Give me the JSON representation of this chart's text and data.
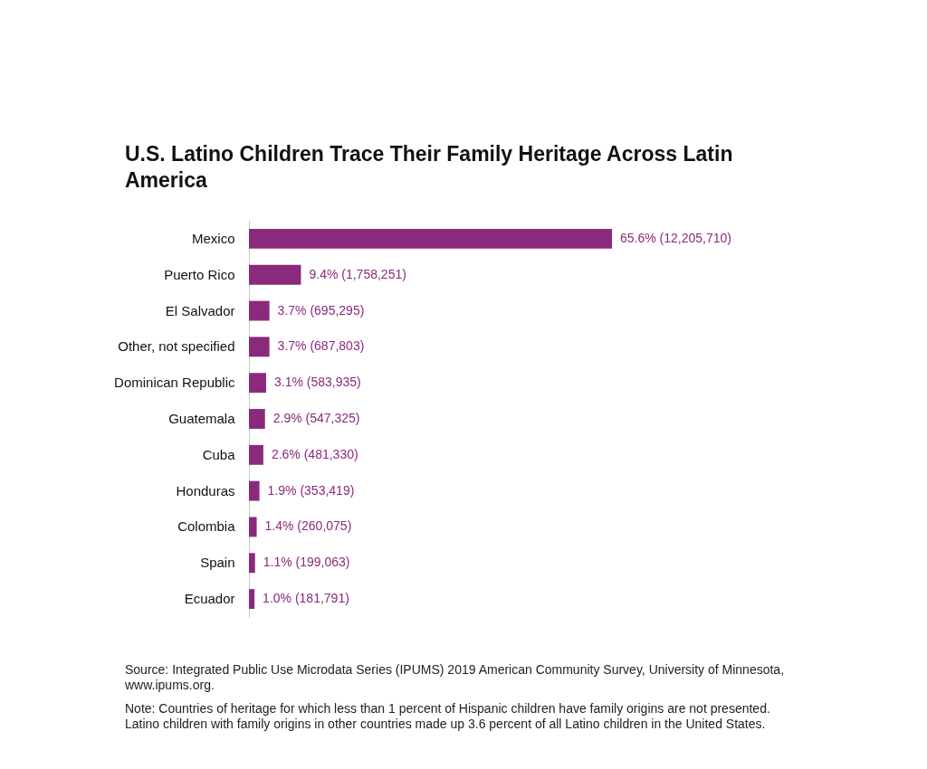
{
  "chart_data": {
    "type": "bar",
    "orientation": "horizontal",
    "title": "U.S. Latino Children Trace Their Family Heritage Across Latin America",
    "categories": [
      "Mexico",
      "Puerto Rico",
      "El Salvador",
      "Other, not specified",
      "Dominican Republic",
      "Guatemala",
      "Cuba",
      "Honduras",
      "Colombia",
      "Spain",
      "Ecuador"
    ],
    "values": [
      65.6,
      9.4,
      3.7,
      3.7,
      3.1,
      2.9,
      2.6,
      1.9,
      1.4,
      1.1,
      1.0
    ],
    "value_labels": [
      "65.6%  (12,205,710)",
      "9.4%  (1,758,251)",
      "3.7%  (695,295)",
      "3.7%  (687,803)",
      "3.1%  (583,935)",
      "2.9%  (547,325)",
      "2.6%  (481,330)",
      "1.9%  (353,419)",
      "1.4%  (260,075)",
      "1.1%  (199,063)",
      "1.0%  (181,791)"
    ],
    "color": "#8b2a7c",
    "annotations": [
      "Source: Integrated Public Use Microdata Series (IPUMS) 2019 American Community Survey, University of Minnesota, www.ipums.org.",
      "Note: Countries of heritage for which less than 1 percent of Hispanic children have family origins are not presented. Latino children with family origins in other countries made up 3.6 percent of all Latino children in the United States."
    ]
  }
}
